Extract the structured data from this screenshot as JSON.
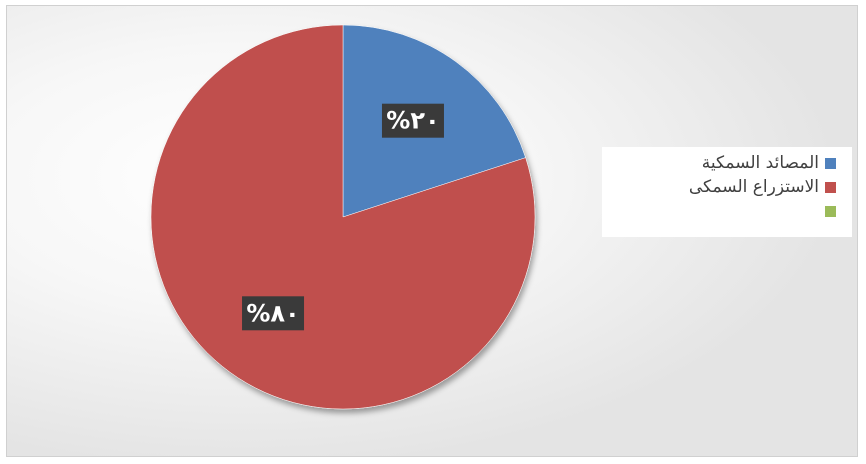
{
  "chart_data": {
    "type": "pie",
    "slices": [
      {
        "name": "المصائد السمكية",
        "value": 20,
        "label": "%٢٠",
        "color": "#4f81bd"
      },
      {
        "name": "الاستزراع السمكى",
        "value": 80,
        "label": "%٨٠",
        "color": "#c0504d"
      },
      {
        "name": "",
        "value": 0,
        "label": "",
        "color": "#9bbb59"
      }
    ],
    "legend_position": "right"
  }
}
